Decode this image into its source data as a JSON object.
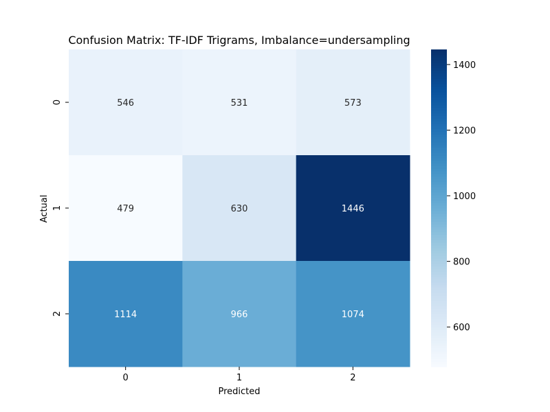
{
  "chart_data": {
    "type": "heatmap",
    "title": "Confusion Matrix: TF-IDF Trigrams, Imbalance=undersampling",
    "xlabel": "Predicted",
    "ylabel": "Actual",
    "x_categories": [
      "0",
      "1",
      "2"
    ],
    "y_categories": [
      "0",
      "1",
      "2"
    ],
    "values": [
      [
        546,
        531,
        573
      ],
      [
        479,
        630,
        1446
      ],
      [
        1114,
        966,
        1074
      ]
    ],
    "colormap": "Blues",
    "color_range": [
      479,
      1446
    ],
    "colorbar_ticks": [
      600,
      800,
      1000,
      1200,
      1400
    ]
  }
}
